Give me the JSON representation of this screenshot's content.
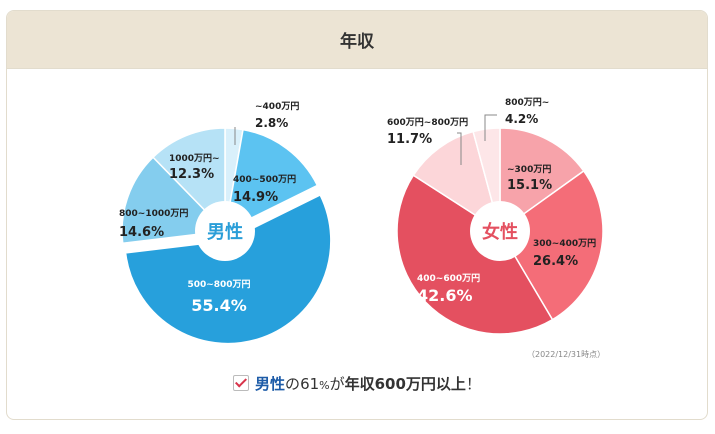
{
  "title": "年収",
  "note": "（2022/12/31時点）",
  "summary": {
    "gender": "男性",
    "part1": "の",
    "percent": "61",
    "unit": "%",
    "part2": "が",
    "highlight": "年収600万円以上",
    "end": "！"
  },
  "chart_data": [
    {
      "type": "pie",
      "center_label": "男性",
      "slices": [
        {
          "label": "~400万円",
          "value": 2.8,
          "display": "2.8%",
          "color": "#d9f0fb"
        },
        {
          "label": "400~500万円",
          "value": 14.9,
          "display": "14.9%",
          "color": "#5cc3f1"
        },
        {
          "label": "500~800万円",
          "value": 55.4,
          "display": "55.4%",
          "color": "#27a0dc"
        },
        {
          "label": "800~1000万円",
          "value": 14.6,
          "display": "14.6%",
          "color": "#84cdee"
        },
        {
          "label": "1000万円~",
          "value": 12.3,
          "display": "12.3%",
          "color": "#b6e2f6"
        }
      ]
    },
    {
      "type": "pie",
      "center_label": "女性",
      "slices": [
        {
          "label": "~300万円",
          "value": 15.1,
          "display": "15.1%",
          "color": "#f7a3aa"
        },
        {
          "label": "300~400万円",
          "value": 26.4,
          "display": "26.4%",
          "color": "#f46d78"
        },
        {
          "label": "400~600万円",
          "value": 42.6,
          "display": "42.6%",
          "color": "#e45060"
        },
        {
          "label": "600万円~800万円",
          "value": 11.7,
          "display": "11.7%",
          "color": "#fcd6d9"
        },
        {
          "label": "800万円~",
          "value": 4.2,
          "display": "4.2%",
          "color": "#fde6e8"
        }
      ]
    }
  ]
}
